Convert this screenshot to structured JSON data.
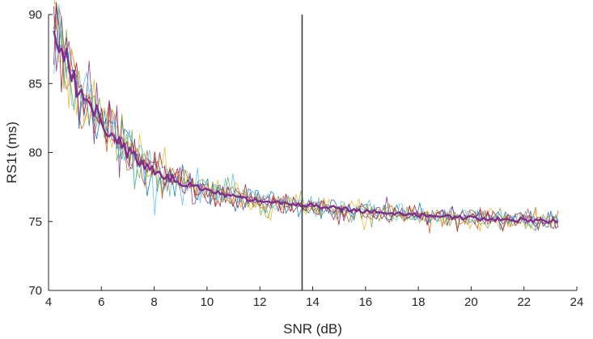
{
  "chart_data": {
    "type": "line",
    "title": "",
    "xlabel": "SNR (dB)",
    "ylabel": "RS1t (ms)",
    "xlim": [
      4,
      24
    ],
    "ylim": [
      70,
      90
    ],
    "xticks": [
      4,
      6,
      8,
      10,
      12,
      14,
      16,
      18,
      20,
      22,
      24
    ],
    "yticks": [
      70,
      75,
      80,
      85,
      90
    ],
    "grid": false,
    "legend": "none",
    "vertical_line_x": 13.6,
    "vertical_line_color": "#404040",
    "noise_series_count": 7,
    "noise_series_colors": [
      "#0072BD",
      "#D95319",
      "#EDB120",
      "#7E2F8E",
      "#77AC30",
      "#4DBEEE",
      "#A2142F"
    ],
    "mean_series_color": "#7E2F8E",
    "mean_curve": {
      "x": [
        4.2,
        4.4,
        4.6,
        4.8,
        5.0,
        5.2,
        5.4,
        5.6,
        5.8,
        6.0,
        6.5,
        7.0,
        7.5,
        8.0,
        8.5,
        9.0,
        9.5,
        10.0,
        10.5,
        11.0,
        11.5,
        12.0,
        12.5,
        13.0,
        13.5,
        14.0,
        14.5,
        15.0,
        15.5,
        16.0,
        16.5,
        17.0,
        17.5,
        18.0,
        18.5,
        19.0,
        19.5,
        20.0,
        20.5,
        21.0,
        21.5,
        22.0,
        22.5,
        23.0,
        23.3
      ],
      "y": [
        89.5,
        88.0,
        86.8,
        86.0,
        85.2,
        84.6,
        84.0,
        83.3,
        82.8,
        82.2,
        81.2,
        80.2,
        79.4,
        78.7,
        78.2,
        77.8,
        77.5,
        77.2,
        77.0,
        76.8,
        76.6,
        76.5,
        76.4,
        76.3,
        76.2,
        76.1,
        76.0,
        75.9,
        75.8,
        75.7,
        75.6,
        75.55,
        75.5,
        75.45,
        75.4,
        75.35,
        75.3,
        75.25,
        75.2,
        75.15,
        75.1,
        75.1,
        75.05,
        75.0,
        75.0
      ]
    }
  }
}
